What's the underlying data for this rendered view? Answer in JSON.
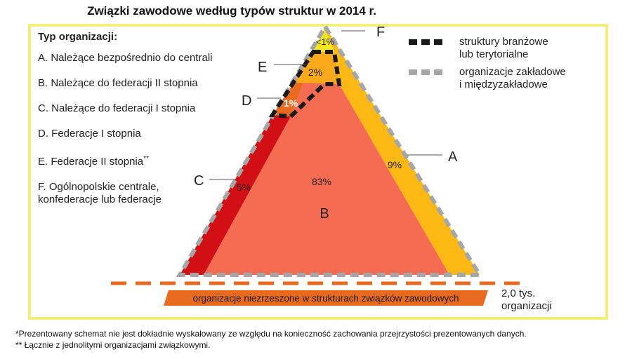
{
  "title": "Związki zawodowe według typów struktur w 2014 r.",
  "legend": {
    "heading": "Typ organizacji:",
    "items": [
      {
        "key": "A",
        "text": "A. Należące bezpośrednio do centrali"
      },
      {
        "key": "B",
        "text": "B. Należące do federacji II stopnia"
      },
      {
        "key": "C",
        "text": "C. Należące do federacji I stopnia"
      },
      {
        "key": "D",
        "text": "D. Federacje I stopnia"
      },
      {
        "key": "E",
        "text": "E. Federacje II stopnia",
        "marker": "**"
      },
      {
        "key": "F",
        "text_line1": "F. Ogólnopolskie centrale,",
        "text_line2": "konfederacje lub federacje"
      }
    ]
  },
  "segments": {
    "A": {
      "letter": "A",
      "value": "9%",
      "color": "#fdb913"
    },
    "B": {
      "letter": "B",
      "value": "83%",
      "color": "#f46c52"
    },
    "C": {
      "letter": "C",
      "value": "5%",
      "color": "#d10f14"
    },
    "D": {
      "letter": "D",
      "value": "1%",
      "color": "#e86a1e"
    },
    "E": {
      "letter": "E",
      "value": "2%",
      "color": "#f9a91a"
    },
    "F": {
      "letter": "F",
      "value": "<1%",
      "color": "#f5e61f"
    }
  },
  "key": {
    "branch": {
      "line1": "struktury branżowe",
      "line2": "lub terytorialne",
      "color": "#1a1a1a"
    },
    "workplace": {
      "line1": "organizacje zakładowe",
      "line2": "i międzyzakładowe",
      "color": "#a6a6a6"
    }
  },
  "unorganized": {
    "label": "organizacje niezrzeszone w strukturach związków zawodowych",
    "color": "#e86a1e"
  },
  "count": {
    "line1": "2,0 tys.",
    "line2": "organizacji"
  },
  "frame_color": "#f3ee7a",
  "footnotes": {
    "note1": "*Prezentowany schemat nie jest dokładnie wyskalowany ze względu na konieczność zachowania przejrzystości prezentowanych danych.",
    "note2": "** Łącznie z jednolitymi organizacjami związkowymi."
  }
}
